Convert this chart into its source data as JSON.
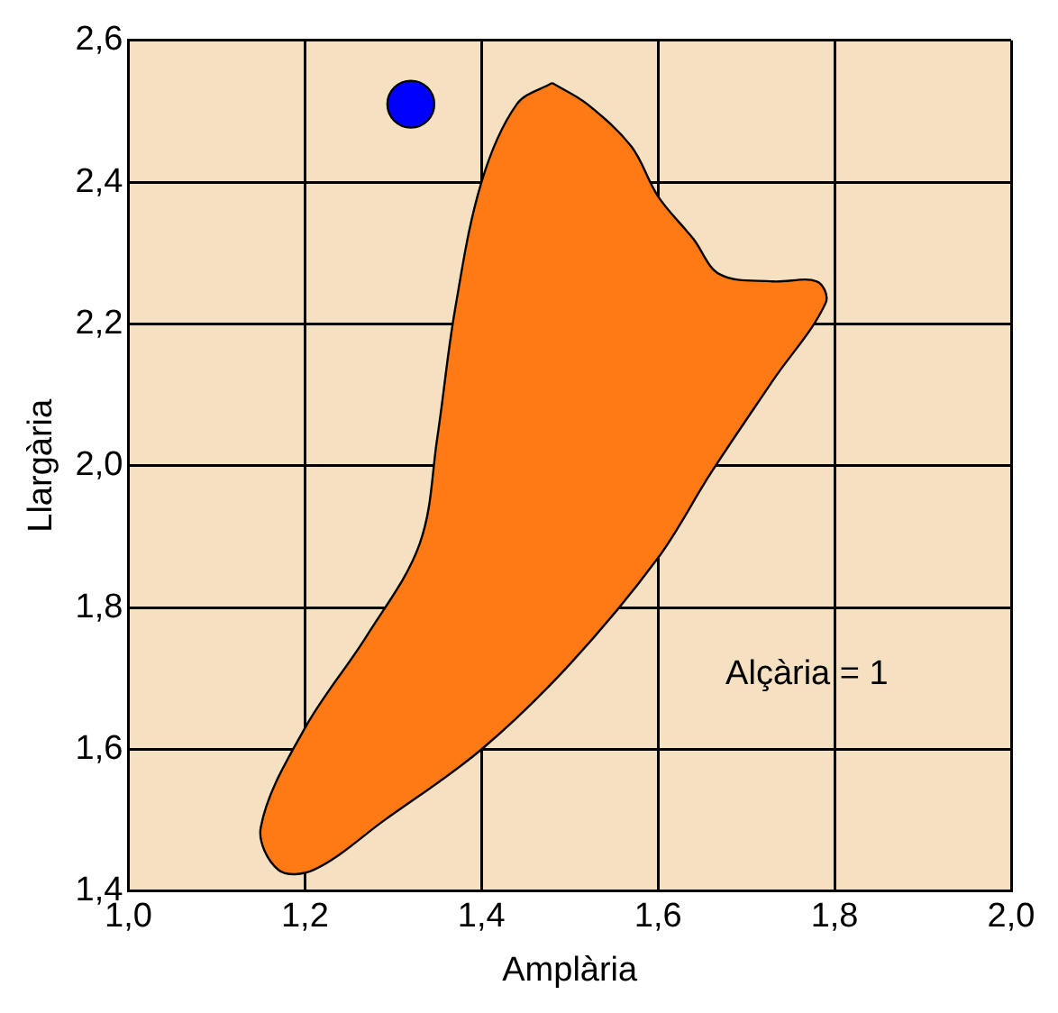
{
  "chart_data": {
    "type": "scatter",
    "xlabel": "Amplària",
    "ylabel": "Llargària",
    "annotations": [
      "Alçària = 1"
    ],
    "xlim": [
      1.0,
      2.0
    ],
    "ylim": [
      1.4,
      2.6
    ],
    "xticks": [
      {
        "value": 1.0,
        "label": "1,0"
      },
      {
        "value": 1.2,
        "label": "1,2"
      },
      {
        "value": 1.4,
        "label": "1,4"
      },
      {
        "value": 1.6,
        "label": "1,6"
      },
      {
        "value": 1.8,
        "label": "1,8"
      },
      {
        "value": 2.0,
        "label": "2,0"
      }
    ],
    "yticks": [
      {
        "value": 1.4,
        "label": "1,4"
      },
      {
        "value": 1.6,
        "label": "1,6"
      },
      {
        "value": 1.8,
        "label": "1,8"
      },
      {
        "value": 2.0,
        "label": "2,0"
      },
      {
        "value": 2.2,
        "label": "2,2"
      },
      {
        "value": 2.4,
        "label": "2,4"
      },
      {
        "value": 2.6,
        "label": "2,6"
      }
    ],
    "grid": true,
    "legend": false,
    "series": [
      {
        "type": "area",
        "color": "#ff7a14",
        "x": [
          1.48,
          1.52,
          1.57,
          1.6,
          1.64,
          1.67,
          1.73,
          1.78,
          1.79,
          1.73,
          1.66,
          1.6,
          1.5,
          1.4,
          1.29,
          1.21,
          1.17,
          1.15,
          1.2,
          1.27,
          1.33,
          1.35,
          1.37,
          1.4,
          1.44
        ],
        "values": [
          2.54,
          2.51,
          2.45,
          2.38,
          2.32,
          2.27,
          2.26,
          2.26,
          2.23,
          2.12,
          1.99,
          1.87,
          1.72,
          1.6,
          1.5,
          1.43,
          1.43,
          1.49,
          1.63,
          1.76,
          1.89,
          2.04,
          2.22,
          2.4,
          2.51
        ]
      },
      {
        "color": "#0000ff",
        "marker": "circle",
        "x": [
          1.32
        ],
        "values": [
          2.51
        ]
      }
    ]
  }
}
